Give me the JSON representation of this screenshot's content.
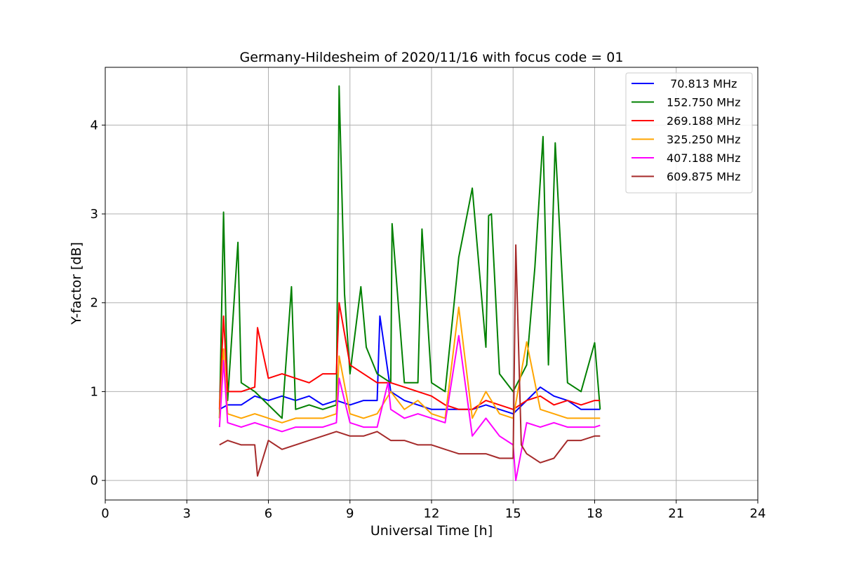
{
  "chart_data": {
    "type": "line",
    "title": "Germany-Hildesheim of 2020/11/16 with focus code = 01",
    "xlabel": "Universal Time [h]",
    "ylabel": "Y-factor [dB]",
    "xlim": [
      0,
      24
    ],
    "ylim": [
      -0.22,
      4.65
    ],
    "xticks": [
      0,
      3,
      6,
      9,
      12,
      15,
      18,
      21,
      24
    ],
    "yticks": [
      0,
      1,
      2,
      3,
      4
    ],
    "grid": true,
    "legend_position": "top-right",
    "series": [
      {
        "name": " 70.813 MHz",
        "color": "#0000ff",
        "x": [
          4.2,
          4.5,
          5.0,
          5.5,
          6.0,
          6.5,
          7.0,
          7.5,
          8.0,
          8.5,
          9.0,
          9.5,
          10.0,
          10.1,
          10.5,
          11.0,
          11.5,
          12.0,
          12.5,
          13.0,
          13.5,
          14.0,
          14.5,
          15.0,
          15.5,
          16.0,
          16.5,
          17.0,
          17.5,
          18.2
        ],
        "y": [
          0.8,
          0.85,
          0.85,
          0.95,
          0.9,
          0.95,
          0.9,
          0.95,
          0.85,
          0.9,
          0.85,
          0.9,
          0.9,
          1.85,
          1.0,
          0.9,
          0.85,
          0.8,
          0.8,
          0.8,
          0.8,
          0.85,
          0.8,
          0.75,
          0.9,
          1.05,
          0.95,
          0.9,
          0.8,
          0.8
        ]
      },
      {
        "name": "152.750 MHz",
        "color": "#008000",
        "x": [
          4.2,
          4.35,
          4.5,
          4.88,
          5.0,
          5.5,
          6.0,
          6.5,
          6.85,
          7.0,
          7.5,
          8.0,
          8.5,
          8.6,
          8.8,
          9.0,
          9.4,
          9.6,
          10.0,
          10.5,
          10.55,
          11.0,
          11.5,
          11.65,
          12.0,
          12.5,
          13.0,
          13.5,
          14.0,
          14.1,
          14.2,
          14.5,
          15.0,
          15.5,
          15.8,
          16.1,
          16.3,
          16.55,
          17.0,
          17.5,
          18.0,
          18.2
        ],
        "y": [
          0.7,
          3.02,
          0.9,
          2.68,
          1.1,
          1.0,
          0.85,
          0.7,
          2.18,
          0.8,
          0.85,
          0.8,
          0.85,
          4.44,
          2.1,
          1.2,
          2.18,
          1.5,
          1.2,
          1.1,
          2.89,
          1.1,
          1.1,
          2.83,
          1.1,
          1.0,
          2.51,
          3.29,
          1.5,
          2.98,
          3.0,
          1.2,
          1.0,
          1.3,
          2.4,
          3.87,
          1.3,
          3.8,
          1.1,
          1.0,
          1.55,
          0.8
        ]
      },
      {
        "name": "269.188 MHz",
        "color": "#ff0000",
        "x": [
          4.2,
          4.35,
          4.5,
          5.0,
          5.5,
          5.6,
          6.0,
          6.5,
          7.0,
          7.5,
          8.0,
          8.5,
          8.6,
          9.0,
          9.5,
          10.0,
          10.5,
          11.0,
          11.5,
          12.0,
          12.5,
          13.0,
          13.5,
          14.0,
          14.5,
          15.0,
          15.5,
          16.0,
          16.5,
          17.0,
          17.5,
          18.0,
          18.2
        ],
        "y": [
          0.8,
          1.85,
          1.0,
          1.0,
          1.05,
          1.72,
          1.15,
          1.2,
          1.15,
          1.1,
          1.2,
          1.2,
          2.0,
          1.3,
          1.2,
          1.1,
          1.1,
          1.05,
          1.0,
          0.95,
          0.85,
          0.8,
          0.8,
          0.9,
          0.85,
          0.8,
          0.9,
          0.95,
          0.85,
          0.9,
          0.85,
          0.9,
          0.9
        ]
      },
      {
        "name": "325.250 MHz",
        "color": "#ffa500",
        "x": [
          4.2,
          4.35,
          4.5,
          5.0,
          5.5,
          6.0,
          6.5,
          7.0,
          7.5,
          8.0,
          8.5,
          8.6,
          9.0,
          9.5,
          10.0,
          10.5,
          11.0,
          11.5,
          12.0,
          12.5,
          13.0,
          13.5,
          14.0,
          14.5,
          15.0,
          15.5,
          16.0,
          16.5,
          17.0,
          17.5,
          18.0,
          18.2
        ],
        "y": [
          0.7,
          1.48,
          0.75,
          0.7,
          0.75,
          0.7,
          0.65,
          0.7,
          0.7,
          0.7,
          0.75,
          1.4,
          0.75,
          0.7,
          0.75,
          1.0,
          0.8,
          0.9,
          0.75,
          0.7,
          1.95,
          0.7,
          1.0,
          0.75,
          0.7,
          1.56,
          0.8,
          0.75,
          0.7,
          0.7,
          0.7,
          0.7
        ]
      },
      {
        "name": "407.188 MHz",
        "color": "#ff00ff",
        "x": [
          4.2,
          4.35,
          4.5,
          5.0,
          5.5,
          6.0,
          6.5,
          7.0,
          7.5,
          8.0,
          8.5,
          8.6,
          9.0,
          9.5,
          10.0,
          10.4,
          10.5,
          11.0,
          11.5,
          12.0,
          12.5,
          13.0,
          13.5,
          14.0,
          14.5,
          15.0,
          15.1,
          15.5,
          16.0,
          16.5,
          17.0,
          17.5,
          18.0,
          18.2
        ],
        "y": [
          0.6,
          1.35,
          0.65,
          0.6,
          0.65,
          0.6,
          0.55,
          0.6,
          0.6,
          0.6,
          0.65,
          1.15,
          0.65,
          0.6,
          0.6,
          1.1,
          0.8,
          0.7,
          0.75,
          0.7,
          0.65,
          1.63,
          0.5,
          0.7,
          0.5,
          0.4,
          0.0,
          0.65,
          0.6,
          0.65,
          0.6,
          0.6,
          0.6,
          0.62
        ]
      },
      {
        "name": "609.875 MHz",
        "color": "#a52a2a",
        "x": [
          4.2,
          4.5,
          5.0,
          5.5,
          5.6,
          6.0,
          6.5,
          7.0,
          7.5,
          8.0,
          8.5,
          9.0,
          9.5,
          10.0,
          10.5,
          11.0,
          11.5,
          12.0,
          12.5,
          13.0,
          13.5,
          14.0,
          14.5,
          15.0,
          15.1,
          15.3,
          15.5,
          16.0,
          16.5,
          17.0,
          17.5,
          18.0,
          18.2
        ],
        "y": [
          0.4,
          0.45,
          0.4,
          0.4,
          0.05,
          0.45,
          0.35,
          0.4,
          0.45,
          0.5,
          0.55,
          0.5,
          0.5,
          0.55,
          0.45,
          0.45,
          0.4,
          0.4,
          0.35,
          0.3,
          0.3,
          0.3,
          0.25,
          0.25,
          2.65,
          0.4,
          0.3,
          0.2,
          0.25,
          0.45,
          0.45,
          0.5,
          0.5
        ]
      }
    ]
  }
}
